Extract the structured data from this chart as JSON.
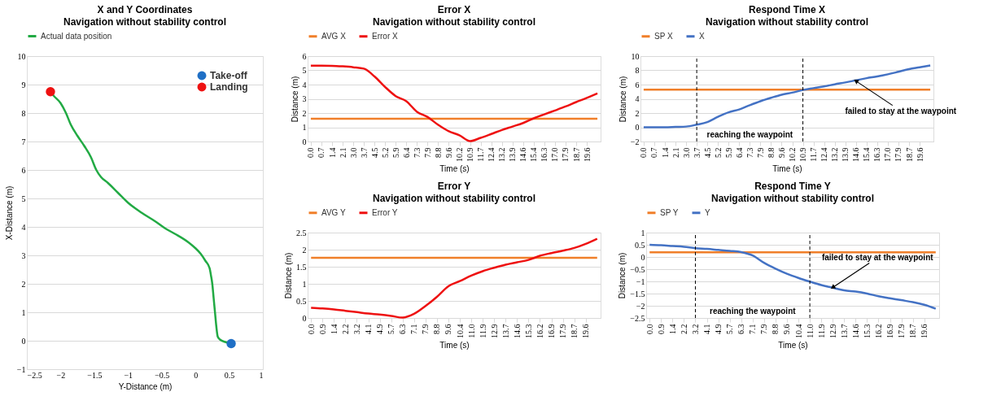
{
  "chart_data": [
    {
      "type": "line",
      "title": "X and Y Coordinates",
      "subtitle": "Navigation without stability control",
      "xlabel": "Y-Distance (m)",
      "ylabel": "X-Distance (m)",
      "xlim": [
        -2.5,
        1
      ],
      "xticks": [
        -2.5,
        -2,
        -1.5,
        -1,
        -0.5,
        0,
        0.5,
        1
      ],
      "ylim": [
        -1,
        10
      ],
      "yticks": [
        -1,
        0,
        1,
        2,
        3,
        4,
        5,
        6,
        7,
        8,
        9,
        10
      ],
      "grid": "y",
      "legend": "top",
      "series": [
        {
          "name": "Actual data position",
          "color": "#22aa44",
          "x": [
            0.53,
            0.45,
            0.36,
            0.33,
            0.31,
            0.29,
            0.27,
            0.25,
            0.23,
            0.21,
            0.15,
            0.08,
            0.0,
            -0.1,
            -0.3,
            -0.45,
            -0.6,
            -0.8,
            -1.0,
            -1.15,
            -1.3,
            -1.4,
            -1.47,
            -1.55,
            -1.65,
            -1.75,
            -1.85,
            -1.92,
            -2.0,
            -2.1,
            -2.15
          ],
          "values": [
            -0.1,
            -0.05,
            0.05,
            0.15,
            0.5,
            1.0,
            1.5,
            2.0,
            2.3,
            2.55,
            2.8,
            3.05,
            3.25,
            3.45,
            3.75,
            3.95,
            4.2,
            4.5,
            4.85,
            5.2,
            5.55,
            5.75,
            6.0,
            6.45,
            6.85,
            7.2,
            7.6,
            8.0,
            8.35,
            8.6,
            8.75
          ]
        },
        {
          "name": "Take-off",
          "type": "scatter",
          "color": "#1f6fc5",
          "x": [
            0.53
          ],
          "values": [
            -0.1
          ]
        },
        {
          "name": "Landing",
          "type": "scatter",
          "color": "#ee1111",
          "x": [
            -2.15
          ],
          "values": [
            8.75
          ]
        }
      ]
    },
    {
      "type": "line",
      "title": "Error X",
      "subtitle": "Navigation without stability control",
      "xlabel": "Time (s)",
      "ylabel": "Distance (m)",
      "ylim": [
        0,
        6
      ],
      "yticks": [
        0,
        1,
        2,
        3,
        4,
        5,
        6
      ],
      "grid": "y",
      "legend": "top",
      "categories": [
        "0.0",
        "0.7",
        "1.4",
        "2.1",
        "3.0",
        "3.7",
        "4.5",
        "5.2",
        "5.9",
        "6.4",
        "7.3",
        "7.9",
        "8.8",
        "9.6",
        "10.2",
        "10.9",
        "11.7",
        "12.4",
        "13.2",
        "13.9",
        "14.6",
        "15.4",
        "16.3",
        "17.0",
        "17.9",
        "18.7",
        "19.6",
        null
      ],
      "series": [
        {
          "name": "AVG X",
          "color": "#f07f2a",
          "values": [
            1.6,
            1.6,
            1.6,
            1.6,
            1.6,
            1.6,
            1.6,
            1.6,
            1.6,
            1.6,
            1.6,
            1.6,
            1.6,
            1.6,
            1.6,
            1.6,
            1.6,
            1.6,
            1.6,
            1.6,
            1.6,
            1.6,
            1.6,
            1.6,
            1.6,
            1.6,
            1.6,
            1.6
          ]
        },
        {
          "name": "Error X",
          "color": "#ee1111",
          "values": [
            5.33,
            5.33,
            5.32,
            5.28,
            5.22,
            5.12,
            4.57,
            3.83,
            3.19,
            2.83,
            2.09,
            1.72,
            1.17,
            0.72,
            0.44,
            0.03,
            0.26,
            0.53,
            0.81,
            1.05,
            1.3,
            1.63,
            1.91,
            2.18,
            2.46,
            2.77,
            3.06,
            3.38
          ]
        }
      ]
    },
    {
      "type": "line",
      "title": "Respond Time X",
      "subtitle": "Navigation without stability control",
      "xlabel": "Time (s)",
      "ylabel": "Distance (m)",
      "ylim": [
        -2,
        10
      ],
      "yticks": [
        -2,
        0,
        2,
        4,
        6,
        8,
        10
      ],
      "grid": "y",
      "legend": "top",
      "categories": [
        "0.0",
        "0.7",
        "1.4",
        "2.1",
        "3.0",
        "3.7",
        "4.5",
        "5.2",
        "5.9",
        "6.4",
        "7.3",
        "7.9",
        "8.8",
        "9.6",
        "10.2",
        "10.9",
        "11.7",
        "12.4",
        "13.2",
        "13.9",
        "14.6",
        "15.4",
        "16.3",
        "17.0",
        "17.9",
        "18.7",
        "19.6",
        null
      ],
      "series": [
        {
          "name": "SP X",
          "color": "#f07f2a",
          "values": [
            5.3,
            5.3,
            5.3,
            5.3,
            5.3,
            5.3,
            5.3,
            5.3,
            5.3,
            5.3,
            5.3,
            5.3,
            5.3,
            5.3,
            5.3,
            5.3,
            5.3,
            5.3,
            5.3,
            5.3,
            5.3,
            5.3,
            5.3,
            5.3,
            5.3,
            5.3,
            5.3,
            5.3
          ]
        },
        {
          "name": "X",
          "color": "#4472c4",
          "values": [
            0.0,
            0.0,
            0.0,
            0.05,
            0.1,
            0.37,
            0.73,
            1.47,
            2.1,
            2.5,
            3.1,
            3.66,
            4.14,
            4.58,
            4.87,
            5.24,
            5.5,
            5.75,
            6.04,
            6.3,
            6.6,
            6.9,
            7.14,
            7.44,
            7.8,
            8.17,
            8.42,
            8.68
          ]
        }
      ],
      "ref_lines": [
        {
          "axis": "x",
          "value": "3.7",
          "color": "#000000",
          "line_style": "dashed"
        },
        {
          "axis": "x",
          "value": "10.9",
          "color": "#000000",
          "line_style": "dashed"
        }
      ],
      "annotations": [
        "reaching the waypoint",
        {
          "text": "failed to stay at the waypoint",
          "x": "14.6",
          "y": 6.5
        }
      ]
    },
    {
      "type": "line",
      "title": "Error Y",
      "subtitle": "Navigation without stability control",
      "xlabel": "Time (s)",
      "ylabel": "Distance (m)",
      "ylim": [
        0,
        2.5
      ],
      "yticks": [
        0,
        0.5,
        1,
        1.5,
        2,
        2.5
      ],
      "grid": "y",
      "legend": "top",
      "categories": [
        "0.0",
        "0.9",
        "1.4",
        "2.2",
        "3.2",
        "4.1",
        "4.9",
        "5.7",
        "6.3",
        "7.1",
        "7.9",
        "8.8",
        "9.6",
        "10.4",
        "11.0",
        "11.9",
        "12.9",
        "13.7",
        "14.6",
        "15.3",
        "16.2",
        "16.9",
        "17.9",
        "18.7",
        "19.6",
        null
      ],
      "series": [
        {
          "name": "AVG Y",
          "color": "#f07f2a",
          "values": [
            1.76,
            1.76,
            1.76,
            1.76,
            1.76,
            1.76,
            1.76,
            1.76,
            1.76,
            1.76,
            1.76,
            1.76,
            1.76,
            1.76,
            1.76,
            1.76,
            1.76,
            1.76,
            1.76,
            1.76,
            1.76,
            1.76,
            1.76,
            1.76,
            1.76,
            1.76
          ]
        },
        {
          "name": "Error Y",
          "color": "#ee1111",
          "values": [
            0.3,
            0.28,
            0.25,
            0.21,
            0.17,
            0.13,
            0.1,
            0.06,
            0.01,
            0.12,
            0.35,
            0.62,
            0.93,
            1.08,
            1.24,
            1.37,
            1.47,
            1.56,
            1.63,
            1.7,
            1.82,
            1.9,
            1.97,
            2.05,
            2.17,
            2.32
          ]
        }
      ]
    },
    {
      "type": "line",
      "title": "Respond Time Y",
      "subtitle": "Navigation without stability control",
      "xlabel": "Time (s)",
      "ylabel": "Distance (m)",
      "ylim": [
        -2.5,
        1
      ],
      "yticks": [
        -2.5,
        -2,
        -1.5,
        -1,
        -0.5,
        0,
        0.5,
        1
      ],
      "grid": "y",
      "legend": "top",
      "categories": [
        "0.0",
        "0.9",
        "1.4",
        "2.2",
        "3.2",
        "4.1",
        "4.9",
        "5.7",
        "6.3",
        "7.1",
        "7.9",
        "8.8",
        "9.6",
        "10.4",
        "11.0",
        "11.9",
        "12.9",
        "13.7",
        "14.6",
        "15.3",
        "16.2",
        "16.9",
        "17.9",
        "18.7",
        "19.6",
        null
      ],
      "series": [
        {
          "name": "SP Y",
          "color": "#f07f2a",
          "values": [
            0.19,
            0.19,
            0.19,
            0.19,
            0.19,
            0.19,
            0.19,
            0.19,
            0.19,
            0.19,
            0.19,
            0.19,
            0.19,
            0.19,
            0.19,
            0.19,
            0.19,
            0.19,
            0.19,
            0.19,
            0.19,
            0.19,
            0.19,
            0.19,
            0.19,
            0.19
          ]
        },
        {
          "name": "Y",
          "color": "#4472c4",
          "values": [
            0.5,
            0.48,
            0.45,
            0.42,
            0.36,
            0.33,
            0.29,
            0.25,
            0.2,
            0.06,
            -0.24,
            -0.48,
            -0.69,
            -0.86,
            -1.01,
            -1.15,
            -1.26,
            -1.37,
            -1.42,
            -1.5,
            -1.61,
            -1.69,
            -1.77,
            -1.85,
            -1.96,
            -2.12
          ]
        }
      ],
      "ref_lines": [
        {
          "axis": "x",
          "value": "3.2",
          "color": "#000000",
          "line_style": "dashed"
        },
        {
          "axis": "x",
          "value": "11.0",
          "color": "#000000",
          "line_style": "dashed"
        }
      ],
      "annotations": [
        "reaching the waypoint",
        {
          "text": "failed to stay at the waypoint",
          "x": "12.9",
          "y": -1.25
        }
      ]
    }
  ]
}
